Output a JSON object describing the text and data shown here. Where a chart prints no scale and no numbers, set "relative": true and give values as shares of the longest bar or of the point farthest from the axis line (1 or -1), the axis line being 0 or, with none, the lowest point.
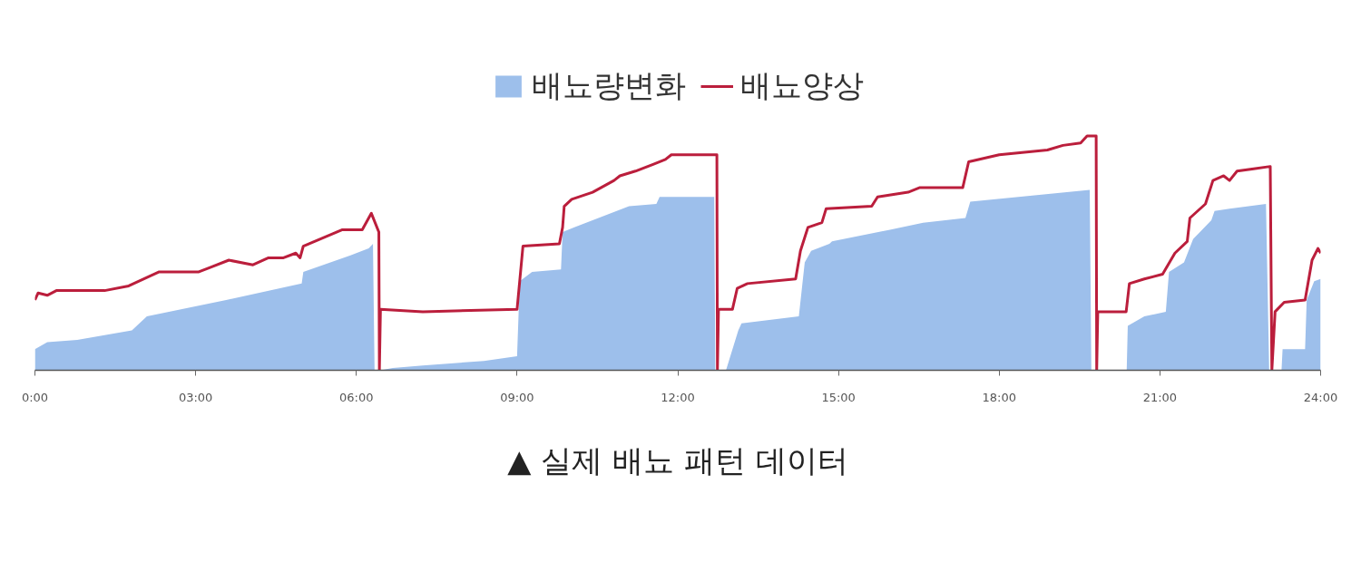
{
  "chart_data": {
    "type": "area",
    "relative": true,
    "xlim": [
      0,
      24
    ],
    "xticks": [
      {
        "value": 0,
        "label": "0:00"
      },
      {
        "value": 3,
        "label": "03:00"
      },
      {
        "value": 6,
        "label": "06:00"
      },
      {
        "value": 9,
        "label": "09:00"
      },
      {
        "value": 12,
        "label": "12:00"
      },
      {
        "value": 15,
        "label": "15:00"
      },
      {
        "value": 18,
        "label": "18:00"
      },
      {
        "value": 21,
        "label": "21:00"
      },
      {
        "value": 24,
        "label": "24:00"
      }
    ],
    "legend": "top",
    "series": [
      {
        "name": "배뇨량변화",
        "color": "#9dbfeb",
        "x": [
          0,
          0.23,
          0.79,
          1.81,
          2.09,
          3.57,
          4.98,
          5.01,
          5.89,
          6.23,
          6.31,
          6.34,
          6.45,
          6.68,
          7.24,
          8.38,
          9.0,
          9.05,
          9.28,
          9.82,
          9.85,
          10.07,
          11.09,
          11.6,
          11.66,
          12.68,
          12.7,
          12.9,
          13.13,
          13.19,
          14.26,
          14.37,
          14.49,
          14.83,
          14.88,
          15.96,
          16.58,
          17.37,
          17.46,
          19.69,
          19.72,
          20.38,
          20.4,
          20.71,
          21.11,
          21.17,
          21.45,
          21.62,
          21.96,
          22.02,
          22.3,
          22.98,
          23.04,
          23.27,
          23.29,
          23.71,
          23.74,
          23.88,
          24.0
        ],
        "values": [
          0.09,
          0.12,
          0.13,
          0.17,
          0.23,
          0.3,
          0.37,
          0.42,
          0.49,
          0.52,
          0.54,
          0,
          0,
          0.01,
          0.02,
          0.04,
          0.06,
          0.38,
          0.42,
          0.43,
          0.59,
          0.61,
          0.7,
          0.71,
          0.74,
          0.74,
          0,
          0,
          0.17,
          0.2,
          0.23,
          0.46,
          0.51,
          0.54,
          0.55,
          0.6,
          0.63,
          0.65,
          0.72,
          0.77,
          0,
          0,
          0.19,
          0.23,
          0.25,
          0.42,
          0.46,
          0.56,
          0.64,
          0.68,
          0.69,
          0.71,
          0,
          0,
          0.09,
          0.09,
          0.3,
          0.38,
          0.39
        ]
      },
      {
        "name": "배뇨양상",
        "type": "line",
        "color": "#bb1e3c",
        "x": [
          0,
          0.06,
          0.23,
          0.4,
          1.3,
          1.75,
          2.32,
          3.06,
          3.28,
          3.62,
          4.07,
          4.36,
          4.64,
          4.87,
          4.95,
          5.01,
          5.32,
          5.74,
          6.11,
          6.28,
          6.42,
          6.43,
          6.45,
          7.24,
          9.0,
          9.11,
          9.79,
          9.85,
          9.88,
          10.02,
          10.41,
          10.81,
          10.92,
          11.21,
          11.55,
          11.77,
          11.88,
          12.73,
          12.74,
          12.76,
          13.02,
          13.11,
          13.3,
          14.2,
          14.29,
          14.43,
          14.69,
          14.77,
          15.62,
          15.73,
          16.3,
          16.52,
          17.32,
          17.43,
          18.0,
          18.9,
          19.19,
          19.52,
          19.64,
          19.81,
          19.82,
          19.84,
          20.37,
          20.43,
          20.71,
          21.05,
          21.28,
          21.51,
          21.56,
          21.85,
          21.99,
          22.19,
          22.3,
          22.44,
          22.75,
          23.06,
          23.09,
          23.15,
          23.32,
          23.71,
          23.84,
          23.95,
          24.0
        ],
        "values": [
          0.3,
          0.33,
          0.32,
          0.34,
          0.34,
          0.36,
          0.42,
          0.42,
          0.44,
          0.47,
          0.45,
          0.48,
          0.48,
          0.5,
          0.48,
          0.53,
          0.56,
          0.6,
          0.6,
          0.67,
          0.59,
          0,
          0.26,
          0.25,
          0.26,
          0.53,
          0.54,
          0.61,
          0.7,
          0.73,
          0.76,
          0.81,
          0.83,
          0.85,
          0.88,
          0.9,
          0.92,
          0.92,
          0,
          0.26,
          0.26,
          0.35,
          0.37,
          0.39,
          0.51,
          0.61,
          0.63,
          0.69,
          0.7,
          0.74,
          0.76,
          0.78,
          0.78,
          0.89,
          0.92,
          0.94,
          0.96,
          0.97,
          1,
          1,
          0,
          0.25,
          0.25,
          0.37,
          0.39,
          0.41,
          0.5,
          0.55,
          0.65,
          0.71,
          0.81,
          0.83,
          0.81,
          0.85,
          0.86,
          0.87,
          0,
          0.25,
          0.29,
          0.3,
          0.47,
          0.52,
          0.5
        ]
      }
    ],
    "annotations": [
      "▲ 실제 배뇨 패턴 데이터"
    ]
  }
}
